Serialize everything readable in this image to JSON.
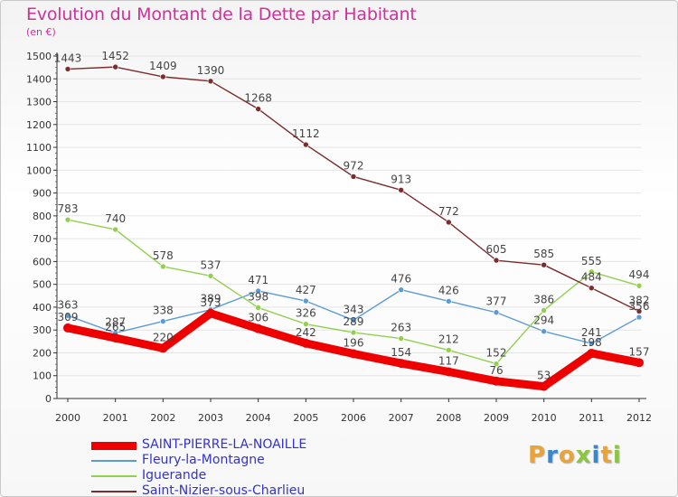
{
  "header": {
    "title": "Evolution du Montant de la Dette par Habitant",
    "unit": "(en €)"
  },
  "logo": {
    "letters": [
      "P",
      "r",
      "o",
      "x",
      "i",
      "t",
      "i"
    ],
    "colors": [
      "#e8a33a",
      "#3a86c8",
      "#e8a33a",
      "#8cc640",
      "#3a86c8",
      "#e8a33a",
      "#8cc640"
    ]
  },
  "colors": {
    "title": "#cc3399",
    "axis": "#333333",
    "tick_label": "#333333",
    "grid": "#e4e4e4"
  },
  "chart_data": {
    "type": "line",
    "title": "Evolution du Montant de la Dette par Habitant",
    "ylabel": "(en €)",
    "xlabel": "",
    "ylim": [
      0,
      1500
    ],
    "yticks": [
      0,
      100,
      200,
      300,
      400,
      500,
      600,
      700,
      800,
      900,
      1000,
      1100,
      1200,
      1300,
      1400,
      1500
    ],
    "grid": true,
    "legend_position": "bottom-left",
    "categories": [
      "2000",
      "2001",
      "2002",
      "2003",
      "2004",
      "2005",
      "2006",
      "2007",
      "2008",
      "2009",
      "2010",
      "2011",
      "2012"
    ],
    "series": [
      {
        "name": "SAINT-PIERRE-LA-NOAILLE",
        "color": "#ee0000",
        "legend_text_color": "#3333cc",
        "emphasis": true,
        "values": [
          309,
          265,
          220,
          373,
          306,
          242,
          196,
          154,
          117,
          76,
          53,
          198,
          157
        ]
      },
      {
        "name": "Fleury-la-Montagne",
        "color": "#5b9bd5",
        "legend_text_color": "#3333cc",
        "emphasis": false,
        "values": [
          363,
          287,
          338,
          389,
          471,
          427,
          343,
          476,
          426,
          377,
          294,
          241,
          356
        ]
      },
      {
        "name": "Iguerande",
        "color": "#92d050",
        "legend_text_color": "#3333cc",
        "emphasis": false,
        "values": [
          783,
          740,
          578,
          537,
          398,
          326,
          289,
          263,
          212,
          152,
          386,
          555,
          494
        ]
      },
      {
        "name": "Saint-Nizier-sous-Charlieu",
        "color": "#7b2c2c",
        "legend_text_color": "#3333cc",
        "emphasis": false,
        "values": [
          1443,
          1452,
          1409,
          1390,
          1268,
          1112,
          972,
          913,
          772,
          605,
          585,
          484,
          382
        ]
      }
    ]
  }
}
